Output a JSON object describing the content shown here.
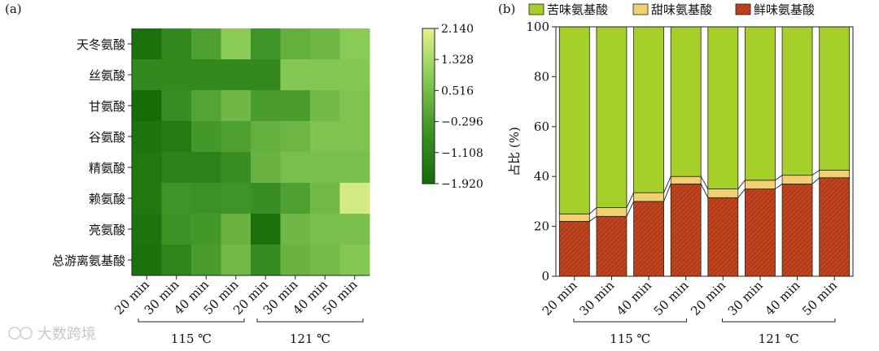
{
  "watermark": "大数跨境",
  "chart_data": [
    {
      "panel_label": "(a)",
      "type": "heatmap",
      "rows": [
        "天冬氨酸",
        "丝氨酸",
        "甘氨酸",
        "谷氨酸",
        "精氨酸",
        "赖氨酸",
        "亮氨酸",
        "总游离氨基酸"
      ],
      "columns": [
        "20 min",
        "30 min",
        "40 min",
        "50 min",
        "20 min",
        "30 min",
        "40 min",
        "50 min"
      ],
      "column_groups": [
        {
          "label": "115 ℃",
          "columns": [
            0,
            1,
            2,
            3
          ]
        },
        {
          "label": "121 ℃",
          "columns": [
            4,
            5,
            6,
            7
          ]
        }
      ],
      "values": [
        [
          -1.7,
          -0.9,
          -0.2,
          0.9,
          -0.5,
          0.2,
          0.4,
          0.9
        ],
        [
          -0.9,
          -0.9,
          -0.9,
          -0.9,
          -0.9,
          0.8,
          0.8,
          0.8
        ],
        [
          -1.9,
          -0.7,
          -0.1,
          0.4,
          -0.3,
          -0.3,
          0.45,
          0.7
        ],
        [
          -1.6,
          -1.4,
          -0.4,
          -0.2,
          0.2,
          0.35,
          0.7,
          0.7
        ],
        [
          -1.5,
          -1.15,
          -1.15,
          -0.7,
          0.3,
          0.6,
          0.6,
          0.6
        ],
        [
          -1.5,
          -0.5,
          -0.6,
          -0.5,
          -0.7,
          -0.2,
          0.45,
          1.9
        ],
        [
          -1.6,
          -0.55,
          -0.4,
          0.3,
          -1.75,
          0.4,
          0.6,
          0.6
        ],
        [
          -1.7,
          -1.0,
          -0.3,
          0.45,
          -0.8,
          0.3,
          0.5,
          0.8
        ]
      ],
      "colorbar": {
        "ticks": [
          "2.140",
          "1.328",
          "0.516",
          "−0.296",
          "−1.108",
          "−1.920"
        ],
        "min": -1.92,
        "max": 2.14
      }
    },
    {
      "panel_label": "(b)",
      "type": "bar",
      "stacked": true,
      "categories": [
        "20 min",
        "30 min",
        "40 min",
        "50 min",
        "20 min",
        "30 min",
        "40 min",
        "50 min"
      ],
      "groups": [
        {
          "label": "115 ℃",
          "columns": [
            0,
            1,
            2,
            3
          ]
        },
        {
          "label": "121 ℃",
          "columns": [
            4,
            5,
            6,
            7
          ]
        }
      ],
      "ylabel": "占比 (%)",
      "ylim": [
        0,
        100
      ],
      "yticks": [
        "0",
        "20",
        "40",
        "60",
        "80",
        "100"
      ],
      "series": [
        {
          "name": "鲜味氨基酸",
          "color": "#c0441e",
          "values": [
            22,
            24,
            30,
            37,
            31.5,
            35,
            37,
            39.5
          ]
        },
        {
          "name": "甜味氨基酸",
          "color": "#f0d070",
          "values": [
            3,
            3.5,
            3.5,
            3,
            3.5,
            3.5,
            3.5,
            3
          ]
        },
        {
          "name": "苦味氨基酸",
          "color": "#a6cf2a",
          "values": [
            75,
            72.5,
            66.5,
            60,
            65,
            61.5,
            59.5,
            57.5
          ]
        }
      ],
      "legend_order": [
        2,
        1,
        0
      ],
      "legend_position": "top"
    }
  ]
}
